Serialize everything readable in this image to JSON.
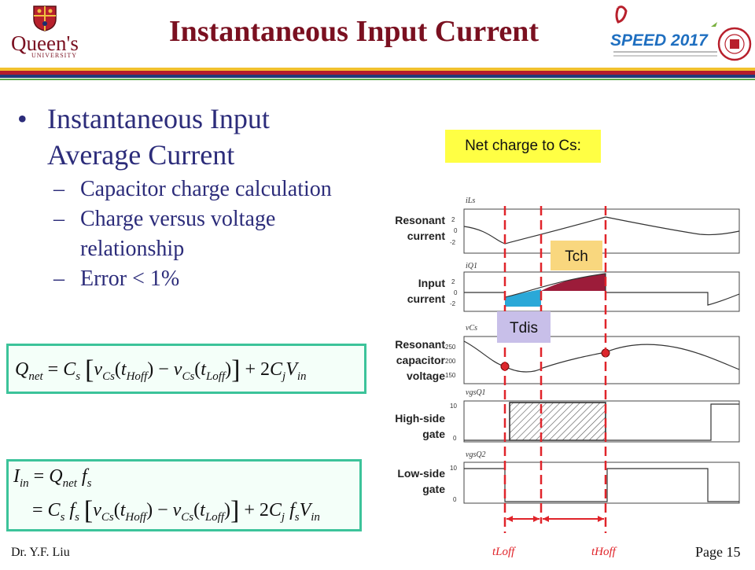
{
  "header": {
    "title": "Instantaneous Input Current",
    "university_logo_text": "Queen's",
    "university_logo_sub": "UNIVERSITY",
    "conference_logo_text": "SPEED 2017"
  },
  "bullets": {
    "main": "Instantaneous Input Average Current",
    "main_line1": "Instantaneous Input",
    "main_line2": "Average Current",
    "sub": [
      "Capacitor charge calculation",
      "Charge versus voltage relationship",
      "Error < 1%"
    ],
    "sub2_line1": "Charge versus voltage",
    "sub2_line2": "relationship"
  },
  "equations": {
    "qnet_label": "Net charge to Cs:"
  },
  "waveforms": {
    "rows": [
      {
        "label_line1": "Resonant",
        "label_line2": "current",
        "signal": "iLs",
        "ticks": [
          "2",
          "0",
          "-2"
        ]
      },
      {
        "label_line1": "Input",
        "label_line2": "current",
        "signal": "iQ1",
        "ticks": [
          "2",
          "0",
          "-2"
        ]
      },
      {
        "label_line1": "Resonant",
        "label_line2": "capacitor",
        "label_line3": "voltage",
        "signal": "vCs",
        "ticks": [
          "250",
          "200",
          "150"
        ]
      },
      {
        "label_line1": "High-side",
        "label_line2": "gate",
        "signal": "vgsQ1",
        "ticks": [
          "10",
          "0"
        ]
      },
      {
        "label_line1": "Low-side",
        "label_line2": "gate",
        "signal": "vgsQ2",
        "ticks": [
          "10",
          "0"
        ]
      }
    ],
    "tch_label": "Tch",
    "tdis_label": "Tdis",
    "t_loff": "tLoff",
    "t_hoff": "tHoff",
    "colors": {
      "charge_fill": "#9c1c3a",
      "discharge_fill": "#2aa8d8",
      "marker_line": "#e0242a",
      "tch_box": "#f9d77e",
      "tdis_box": "#c8bfe9",
      "qnet_box": "#ffff44"
    }
  },
  "footer": {
    "author": "Dr. Y.F. Liu",
    "page": "Page 15"
  }
}
